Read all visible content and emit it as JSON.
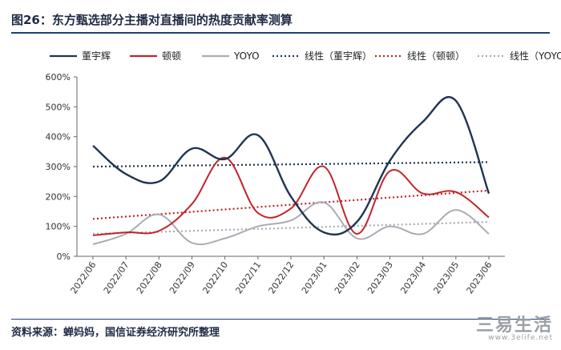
{
  "title": "图26：东方甄选部分主播对直播间的热度贡献率测算",
  "source": "资料来源：蝉妈妈，国信证券经济研究所整理",
  "watermark": {
    "cn": "三易生活",
    "en": "www.3elife.net"
  },
  "chart_data": {
    "type": "line",
    "title": "",
    "xlabel": "",
    "ylabel": "",
    "categories": [
      "2022/06",
      "2022/07",
      "2022/08",
      "2022/09",
      "2022/10",
      "2022/11",
      "2022/12",
      "2023/01",
      "2023/02",
      "2023/03",
      "2023/04",
      "2023/05",
      "2023/06"
    ],
    "y_ticks": [
      "0%",
      "100%",
      "200%",
      "300%",
      "400%",
      "500%",
      "600%"
    ],
    "ylim": [
      0,
      600
    ],
    "legend_position": "top",
    "grid": false,
    "series": [
      {
        "name": "董宇辉",
        "color": "#1f3550",
        "style": "solid",
        "values": [
          370,
          275,
          250,
          360,
          325,
          405,
          200,
          80,
          115,
          320,
          450,
          520,
          210
        ]
      },
      {
        "name": "顿顿",
        "color": "#c0252b",
        "style": "solid",
        "values": [
          70,
          80,
          85,
          175,
          330,
          145,
          160,
          300,
          75,
          285,
          210,
          215,
          130
        ]
      },
      {
        "name": "YOYO",
        "color": "#a9adb3",
        "style": "solid",
        "values": [
          40,
          75,
          140,
          45,
          60,
          100,
          120,
          180,
          60,
          100,
          75,
          155,
          75
        ]
      }
    ],
    "trendlines": [
      {
        "name": "线性（董宇辉）",
        "color": "#1f3550",
        "style": "dotted",
        "start": 300,
        "end": 315
      },
      {
        "name": "线性（顿顿）",
        "color": "#c0252b",
        "style": "dotted",
        "start": 125,
        "end": 220
      },
      {
        "name": "线性（YOYO）",
        "color": "#a9adb3",
        "style": "dotted",
        "start": 75,
        "end": 115
      }
    ]
  }
}
